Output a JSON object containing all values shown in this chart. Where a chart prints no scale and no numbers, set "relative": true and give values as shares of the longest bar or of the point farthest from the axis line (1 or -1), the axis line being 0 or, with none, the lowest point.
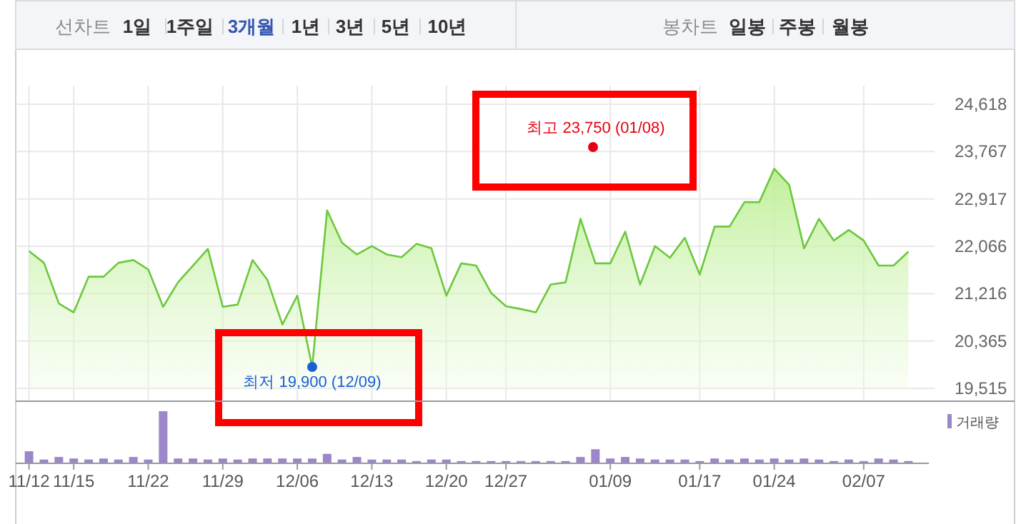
{
  "chart_data": [
    {
      "type": "other",
      "annotations": [
        "선차트",
        "1일",
        "1주일",
        "3개월",
        "1년",
        "3년",
        "5년",
        "10년",
        "봉차트",
        "일봉",
        "주봉",
        "월봉"
      ]
    },
    {
      "type": "area",
      "categories": [
        "11/12",
        null,
        null,
        "11/15",
        null,
        null,
        null,
        null,
        "11/22",
        null,
        null,
        null,
        null,
        "11/29",
        null,
        null,
        null,
        null,
        "12/06",
        null,
        null,
        null,
        null,
        "12/13",
        null,
        null,
        null,
        null,
        "12/20",
        null,
        null,
        null,
        "12/27",
        null,
        null,
        null,
        null,
        null,
        null,
        "01/09",
        null,
        null,
        null,
        null,
        null,
        "01/17",
        null,
        null,
        null,
        null,
        "01/24",
        null,
        null,
        null,
        null,
        null,
        "02/07",
        null,
        null,
        null
      ],
      "series": [
        {
          "color": "#6cc83c",
          "values": [
            21980,
            21770,
            21040,
            20880,
            21520,
            21520,
            21770,
            21820,
            21650,
            20980,
            21420,
            21720,
            22020,
            20980,
            21020,
            21820,
            21460,
            20660,
            21180,
            19900,
            22710,
            22130,
            21920,
            22070,
            21920,
            21870,
            22110,
            22030,
            21180,
            21760,
            21720,
            21230,
            20990,
            20940,
            20880,
            21380,
            21420,
            22560,
            21760,
            21760,
            22330,
            21380,
            22070,
            21860,
            22220,
            21560,
            22420,
            22420,
            22860,
            22860,
            23460,
            23170,
            22030,
            22560,
            22170,
            22360,
            22170,
            21720,
            21720,
            21970
          ]
        }
      ],
      "ylim": [
        19515,
        24618
      ],
      "yticks": [
        {
          "value": 19515,
          "label": "19,515"
        },
        {
          "value": 20365,
          "label": "20,365"
        },
        {
          "value": 21216,
          "label": "21,216"
        },
        {
          "value": 22066,
          "label": "22,066"
        },
        {
          "value": 22917,
          "label": "22,917"
        },
        {
          "value": 23767,
          "label": "23,767"
        },
        {
          "value": 24618,
          "label": "24,618"
        }
      ],
      "grid": true,
      "annotations": [
        "최고 23,750 (01/08)",
        {
          "text": "최저 19,900 (12/09)",
          "y": 19900
        }
      ]
    },
    {
      "type": "bar",
      "relative": true,
      "legend": "top right",
      "categories": [
        null,
        null,
        null,
        null,
        null,
        null,
        null,
        null,
        null,
        null,
        null,
        null,
        null,
        null,
        null,
        null,
        null,
        null,
        null,
        null,
        null,
        null,
        null,
        null,
        null,
        null,
        null,
        null,
        null,
        null,
        null,
        null,
        null,
        null,
        null,
        null,
        null,
        null,
        null,
        null,
        null,
        null,
        null,
        null,
        null,
        null,
        null,
        null,
        null,
        null,
        null,
        null,
        null,
        null,
        null,
        null,
        null,
        null,
        null,
        null
      ],
      "series": [
        {
          "name": "거래량",
          "color": "#9b87c9",
          "values": [
            0.22,
            0.06,
            0.11,
            0.08,
            0.06,
            0.08,
            0.06,
            0.11,
            0.06,
            1,
            0.08,
            0.08,
            0.06,
            0.08,
            0.06,
            0.08,
            0.08,
            0.08,
            0.08,
            0.08,
            0.17,
            0.06,
            0.11,
            0.06,
            0.06,
            0.06,
            0.03,
            0.06,
            0.06,
            0.03,
            0.03,
            0.03,
            0.03,
            0.03,
            0.03,
            0.03,
            0.03,
            0.11,
            0.26,
            0.08,
            0.11,
            0.08,
            0.06,
            0.06,
            0.06,
            0.03,
            0.08,
            0.06,
            0.08,
            0.06,
            0.08,
            0.06,
            0.08,
            0.06,
            0.03,
            0.06,
            0.03,
            0.08,
            0.06,
            0.03
          ]
        }
      ]
    }
  ]
}
